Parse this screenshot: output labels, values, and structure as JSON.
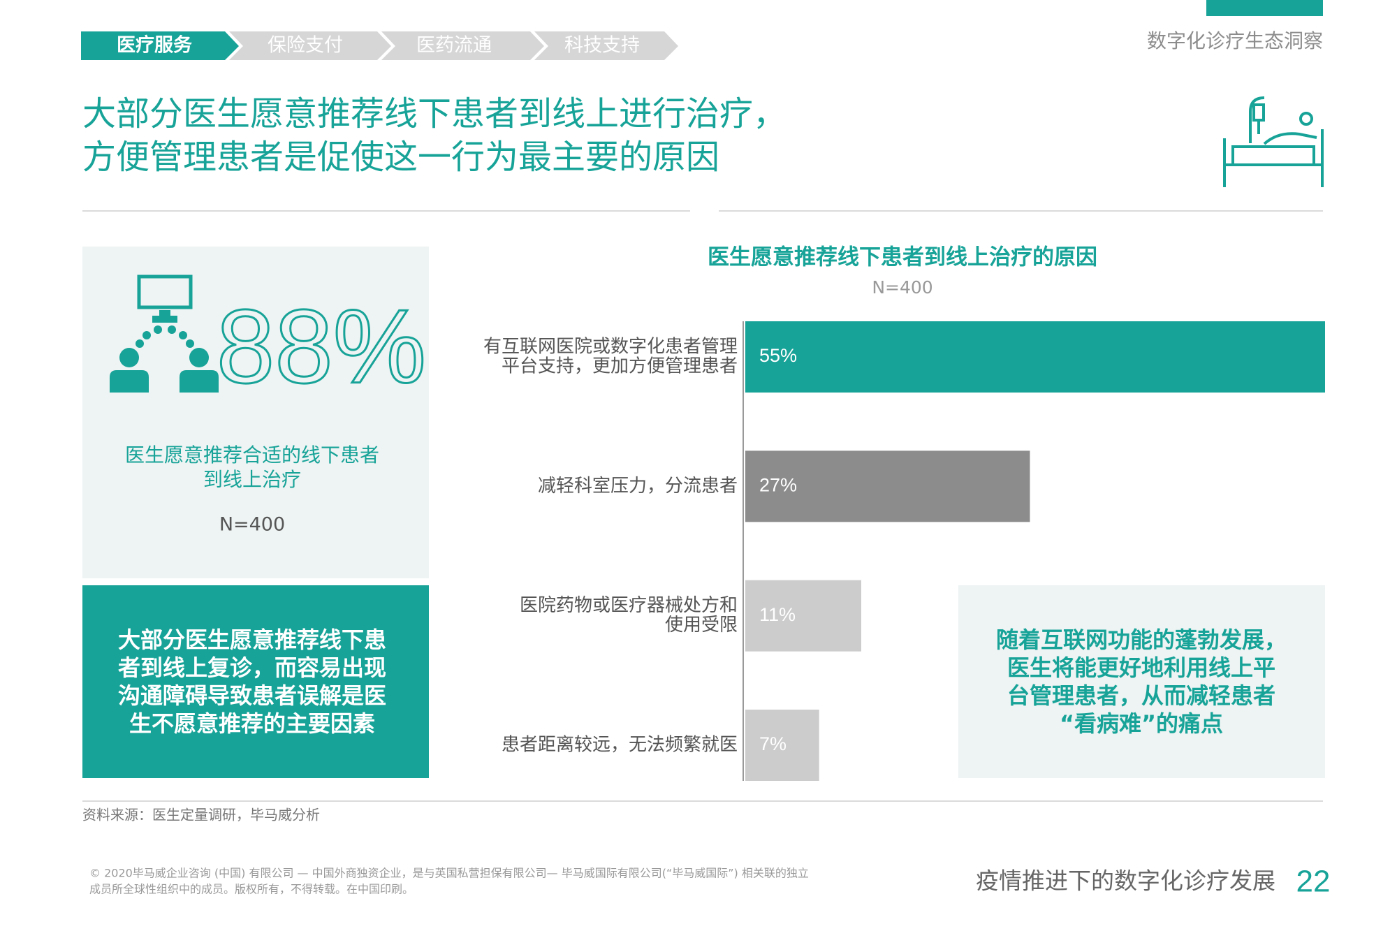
{
  "nav": [
    "医疗服务",
    "保险支付",
    "医药流通",
    "科技支持"
  ],
  "header": {
    "section": "数字化诊疗生态洞察",
    "title": [
      "大部分医生愿意推荐线下患者到线上进行治疗，",
      "方便管理患者是促使这一行为最主要的原因"
    ]
  },
  "left_panel": {
    "stat": "88%",
    "description": [
      "医生愿意推荐合适的线下患者",
      "到线上治疗"
    ],
    "sample": "N=400"
  },
  "left_box": [
    "大部分医生愿意推荐线下患",
    "者到线上复诊，而容易出现",
    "沟通障碍导致患者误解是医",
    "生不愿意推荐的主要因素"
  ],
  "chart_data": {
    "type": "bar",
    "orientation": "horizontal",
    "title": "医生愿意推荐线下患者到线上治疗的原因",
    "subtitle": "N=400",
    "categories": [
      [
        "有互联网医院或数字化患者管理",
        "平台支持，更加方便管理患者"
      ],
      [
        "减轻科室压力，分流患者"
      ],
      [
        "医院药物或医疗器械处方和",
        "使用受限"
      ],
      [
        "患者距离较远，无法频繁就医"
      ]
    ],
    "values": [
      55,
      27,
      11,
      7
    ],
    "value_labels": [
      "55%",
      "27%",
      "11%",
      "7%"
    ],
    "colors": [
      "#17a398",
      "#8c8c8c",
      "#cccccc",
      "#cccccc"
    ]
  },
  "callout": [
    "随着互联网功能的蓬勃发展，",
    "医生将能更好地利用线上平",
    "台管理患者，从而减轻患者",
    "“看病难”的痛点"
  ],
  "source": "资料来源：医生定量调研，毕马威分析",
  "footer": {
    "copyright": [
      "© 2020毕马威企业咨询 (中国) 有限公司 — 中国外商独资企业，是与英国私营担保有限公司— 毕马威国际有限公司(“毕马威国际”) 相关联的独立",
      "成员所全球性组织中的成员。版权所有，不得转载。在中国印刷。"
    ],
    "title": "疫情推进下的数字化诊疗发展",
    "page": "22"
  }
}
